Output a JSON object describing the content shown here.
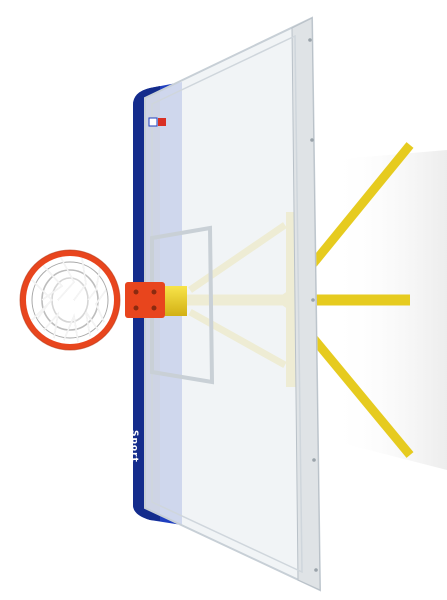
{
  "scene": {
    "subject": "basketball-backboard-with-hoop",
    "brand_text": "Sport",
    "colors": {
      "background": "#ffffff",
      "frame_blue": "#1f3fbf",
      "frame_blue_dark": "#142c8c",
      "glass": "#eef2f5",
      "glass_edge": "#c7cfd6",
      "aluminium": "#dfe3e6",
      "support_yellow": "#f2d92a",
      "support_yellow_dark": "#cfae12",
      "rim_red": "#e8451d",
      "net_white": "#f4f4f4",
      "net_shadow": "#9a9a9a"
    }
  }
}
